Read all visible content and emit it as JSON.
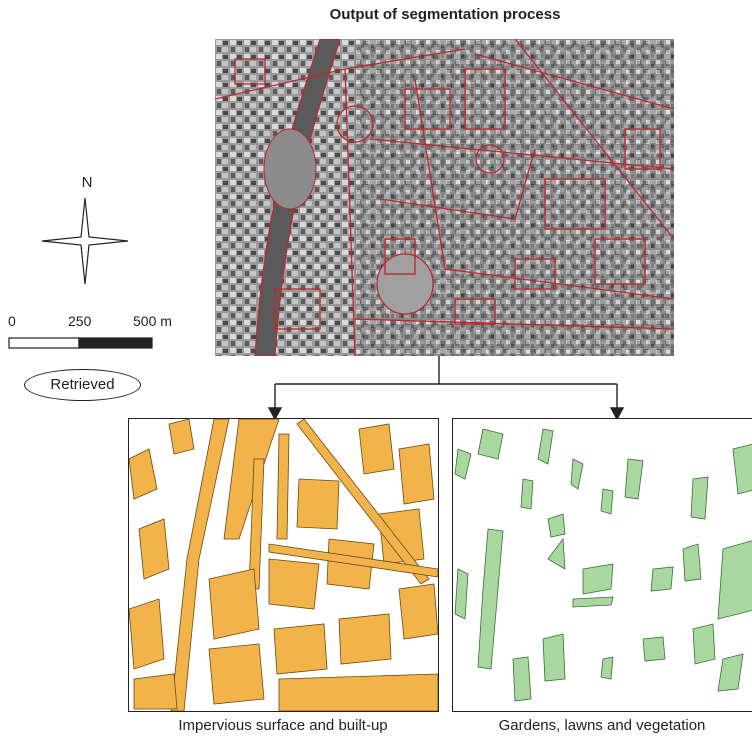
{
  "title": "Output of segmentation process",
  "north_label": "N",
  "scale": {
    "labels": [
      "0",
      "250",
      "500 m"
    ]
  },
  "retrieved_label": "Retrieved",
  "panels": {
    "impervious": {
      "caption": "Impervious surface and built-up",
      "fill": "#f2b34a"
    },
    "vegetation": {
      "caption": "Gardens, lawns and vegetation",
      "fill": "#a8d8a0"
    }
  },
  "colors": {
    "segment_outline": "#c0252b",
    "arrow": "#222222"
  }
}
